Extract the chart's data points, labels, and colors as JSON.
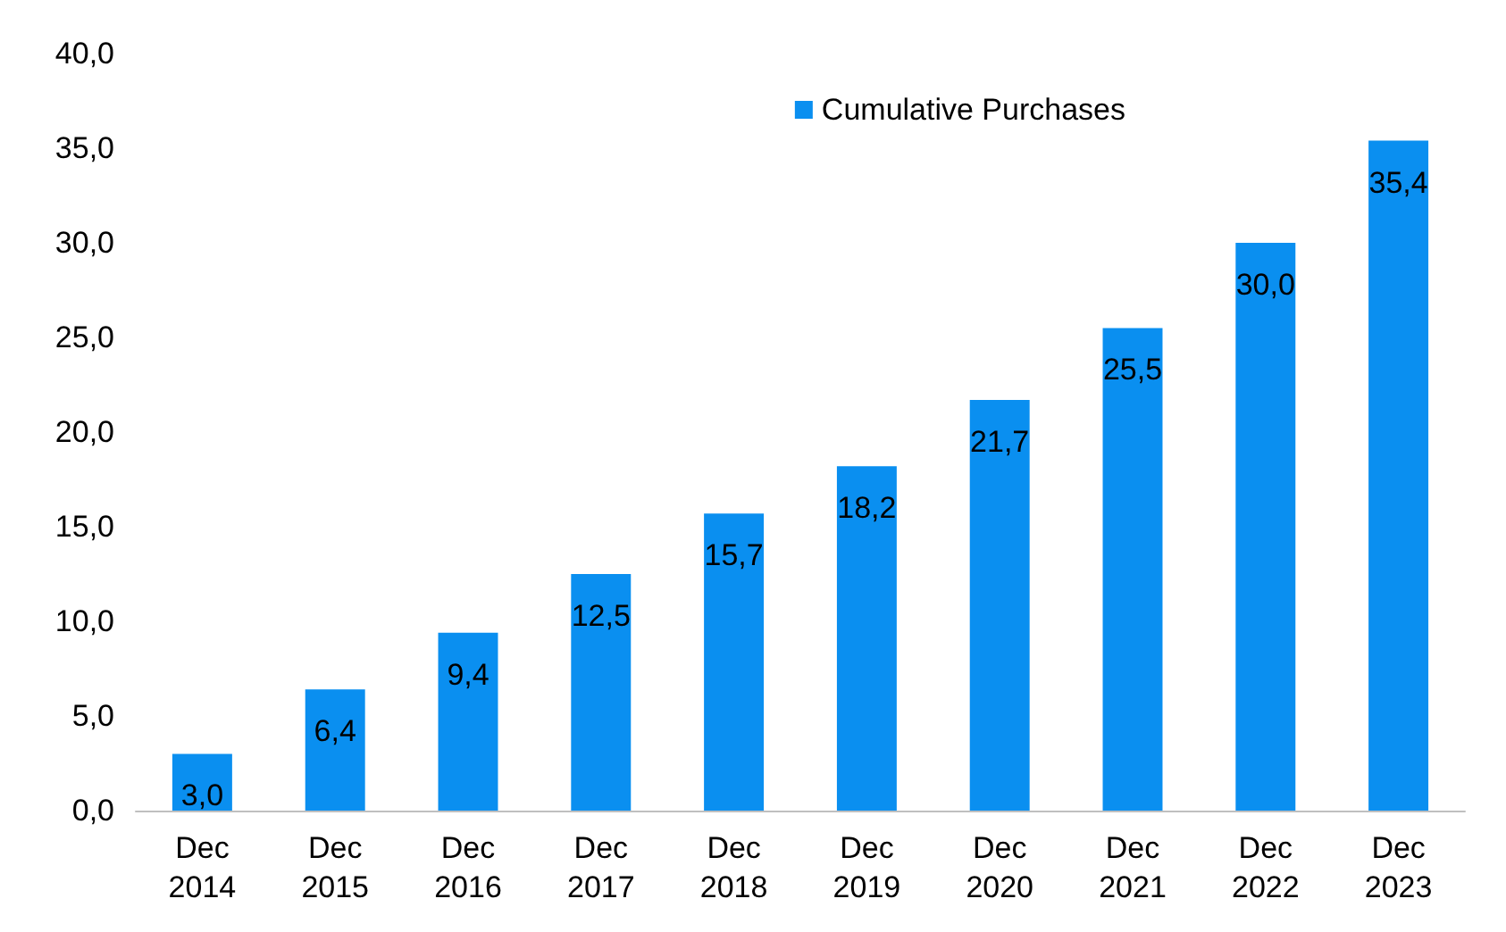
{
  "chart_data": {
    "type": "bar",
    "categories": [
      "Dec\n2014",
      "Dec\n2015",
      "Dec\n2016",
      "Dec\n2017",
      "Dec\n2018",
      "Dec\n2019",
      "Dec\n2020",
      "Dec\n2021",
      "Dec\n2022",
      "Dec\n2023"
    ],
    "series": [
      {
        "name": "Cumulative Purchases",
        "color": "#0a8ff0",
        "values": [
          3.0,
          6.4,
          9.4,
          12.5,
          15.7,
          18.2,
          21.7,
          25.5,
          30.0,
          35.4
        ],
        "value_labels": [
          "3,0",
          "6,4",
          "9,4",
          "12,5",
          "15,7",
          "18,2",
          "21,7",
          "25,5",
          "30,0",
          "35,4"
        ]
      }
    ],
    "ylim": [
      0,
      40
    ],
    "yticks": [
      {
        "value": 0,
        "label": "0,0"
      },
      {
        "value": 5,
        "label": "5,0"
      },
      {
        "value": 10,
        "label": "10,0"
      },
      {
        "value": 15,
        "label": "15,0"
      },
      {
        "value": 20,
        "label": "20,0"
      },
      {
        "value": 25,
        "label": "25,0"
      },
      {
        "value": 30,
        "label": "30,0"
      },
      {
        "value": 35,
        "label": "35,0"
      },
      {
        "value": 40,
        "label": "40,0"
      }
    ],
    "grid": false,
    "legend": "top right"
  }
}
